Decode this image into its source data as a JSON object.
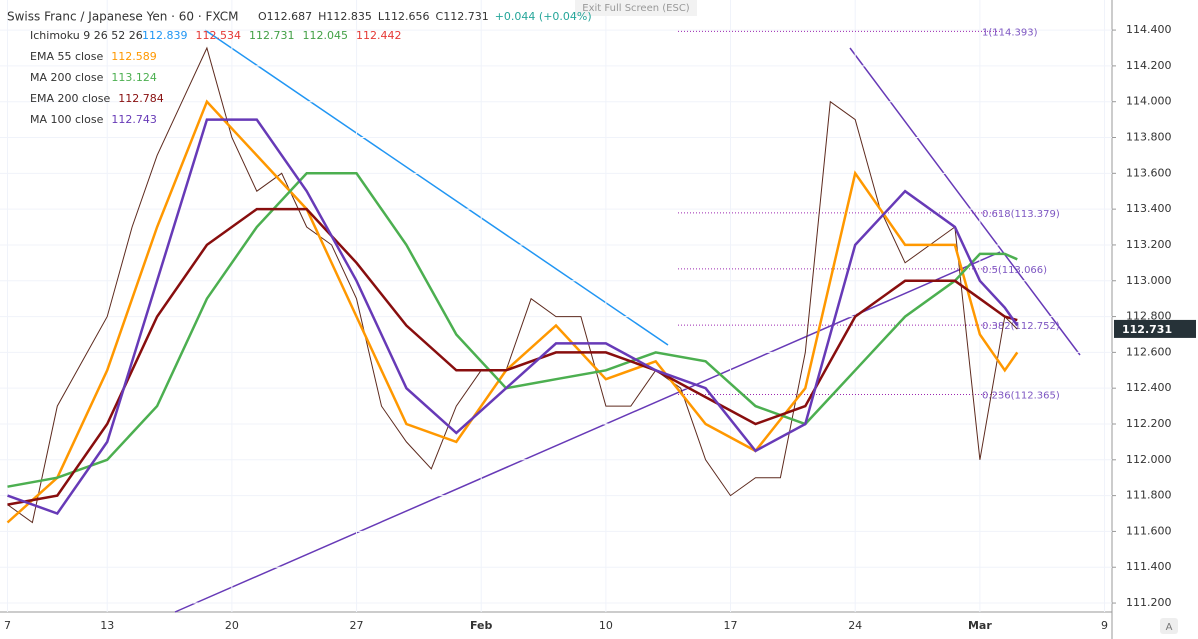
{
  "chart_data": {
    "type": "line",
    "title": "Swiss Franc / Japanese Yen · 60 · FXCM",
    "ohlc": [
      "O112.687",
      "H112.835",
      "L112.656",
      "C112.731",
      "+0.044 (+0.04%)"
    ],
    "exit_button": "Exit Full Screen (ESC)",
    "ichimoku": {
      "name": "Ichimoku 9 26 52 26",
      "values": [
        112.839,
        112.534,
        112.731,
        112.045,
        112.442
      ],
      "colors": [
        "#2196f3",
        "#e53935",
        "#43a047",
        "#43a047",
        "#e53935"
      ]
    },
    "current_price": {
      "value": 112.731,
      "label": "112.731"
    },
    "corner_button": "A",
    "xlim": [
      -0.3,
      44.3
    ],
    "ylim": [
      111.15,
      114.568
    ],
    "xticks": [
      {
        "value": 0,
        "label": "7"
      },
      {
        "value": 4,
        "label": "13"
      },
      {
        "value": 9,
        "label": "20"
      },
      {
        "value": 14,
        "label": "27"
      },
      {
        "value": 19,
        "label": "Feb"
      },
      {
        "value": 24,
        "label": "10"
      },
      {
        "value": 29,
        "label": "17"
      },
      {
        "value": 34,
        "label": "24"
      },
      {
        "value": 39,
        "label": "Mar"
      },
      {
        "value": 44,
        "label": "9"
      }
    ],
    "yticks": [
      {
        "value": 111.2,
        "label": "111.200"
      },
      {
        "value": 111.4,
        "label": "111.400"
      },
      {
        "value": 111.6,
        "label": "111.600"
      },
      {
        "value": 111.8,
        "label": "111.800"
      },
      {
        "value": 112,
        "label": "112.000"
      },
      {
        "value": 112.2,
        "label": "112.200"
      },
      {
        "value": 112.4,
        "label": "112.400"
      },
      {
        "value": 112.6,
        "label": "112.600"
      },
      {
        "value": 112.8,
        "label": "112.800"
      },
      {
        "value": 113,
        "label": "113.000"
      },
      {
        "value": 113.2,
        "label": "113.200"
      },
      {
        "value": 113.4,
        "label": "113.400"
      },
      {
        "value": 113.6,
        "label": "113.600"
      },
      {
        "value": 113.8,
        "label": "113.800"
      },
      {
        "value": 114,
        "label": "114.000"
      },
      {
        "value": 114.2,
        "label": "114.200"
      },
      {
        "value": 114.4,
        "label": "114.400"
      }
    ],
    "fib_levels": [
      {
        "value": 114.393,
        "label": "1(114.393)"
      },
      {
        "value": 113.379,
        "label": "0.618(113.379)"
      },
      {
        "value": 113.066,
        "label": "0.5(113.066)"
      },
      {
        "value": 112.752,
        "label": "0.382(112.752)"
      },
      {
        "value": 112.365,
        "label": "0.236(112.365)"
      }
    ],
    "price": {
      "color": "#5d2a1e",
      "x": [
        0,
        1,
        2,
        3,
        4,
        5,
        6,
        7,
        8,
        9,
        10,
        11,
        12,
        13,
        14,
        15,
        16,
        17,
        18,
        19,
        20,
        21,
        22,
        23,
        24,
        25,
        26,
        27,
        28,
        29,
        30,
        31,
        32,
        33,
        34,
        35,
        36,
        37,
        38,
        39,
        40,
        40.5
      ],
      "values": [
        111.75,
        111.65,
        112.3,
        112.55,
        112.8,
        113.3,
        113.7,
        114.0,
        114.3,
        113.8,
        113.5,
        113.6,
        113.3,
        113.2,
        112.9,
        112.3,
        112.1,
        111.95,
        112.3,
        112.5,
        112.5,
        112.9,
        112.8,
        112.8,
        112.3,
        112.3,
        112.5,
        112.4,
        112.0,
        111.8,
        111.9,
        111.9,
        112.6,
        114.0,
        113.9,
        113.4,
        113.1,
        113.2,
        113.3,
        112.0,
        112.8,
        112.73
      ]
    },
    "x": [
      0,
      2,
      4,
      6,
      8,
      10,
      12,
      14,
      16,
      18,
      20,
      22,
      24,
      26,
      28,
      30,
      32,
      34,
      36,
      38,
      39,
      40,
      40.5
    ],
    "series": [
      {
        "name": "EMA 55 close",
        "value": 112.589,
        "color": "#ff9800",
        "values": [
          111.65,
          111.9,
          112.5,
          113.3,
          114.0,
          113.7,
          113.4,
          112.8,
          112.2,
          112.1,
          112.5,
          112.75,
          112.45,
          112.55,
          112.2,
          112.05,
          112.4,
          113.6,
          113.2,
          113.2,
          112.7,
          112.5,
          112.6
        ]
      },
      {
        "name": "MA 200 close",
        "value": 113.124,
        "color": "#4caf50",
        "values": [
          111.85,
          111.9,
          112.0,
          112.3,
          112.9,
          113.3,
          113.6,
          113.6,
          113.2,
          112.7,
          112.4,
          112.45,
          112.5,
          112.6,
          112.55,
          112.3,
          112.2,
          112.5,
          112.8,
          113.0,
          113.15,
          113.15,
          113.12
        ]
      },
      {
        "name": "EMA 200 close",
        "value": 112.784,
        "color": "#880e0e",
        "values": [
          111.75,
          111.8,
          112.2,
          112.8,
          113.2,
          113.4,
          113.4,
          113.1,
          112.75,
          112.5,
          112.5,
          112.6,
          112.6,
          112.5,
          112.35,
          112.2,
          112.3,
          112.8,
          113.0,
          113.0,
          112.9,
          112.8,
          112.78
        ]
      },
      {
        "name": "MA 100 close",
        "value": 112.743,
        "color": "#673ab7",
        "values": [
          111.8,
          111.7,
          112.1,
          113.0,
          113.9,
          113.9,
          113.5,
          113.0,
          112.4,
          112.15,
          112.4,
          112.65,
          112.65,
          112.5,
          112.4,
          112.05,
          112.2,
          113.2,
          113.5,
          113.3,
          113.0,
          112.85,
          112.75
        ]
      }
    ]
  }
}
